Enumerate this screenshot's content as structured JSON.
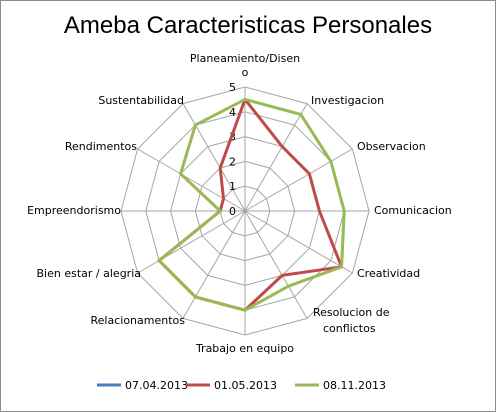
{
  "chart_data": {
    "type": "radar",
    "title": "Ameba Caracteristicas Personales",
    "categories": [
      "Planeamiento/Disen o",
      "Investigacion",
      "Observacion",
      "Comunicacion",
      "Creatividad",
      "Resolucion de conflictos",
      "Trabajo en equipo",
      "Relacionamentos",
      "Bien estar / alegria",
      "Empreendorismo",
      "Rendimentos",
      "Sustentabilidad"
    ],
    "rlim": [
      0,
      5
    ],
    "ticks": [
      "0",
      "1",
      "2",
      "3",
      "4",
      "5"
    ],
    "grid": true,
    "legend_position": "bottom",
    "series": [
      {
        "name": "07.04.2013",
        "color": "#4a7ebb",
        "values": [
          0,
          0,
          0,
          0,
          0,
          0,
          0,
          0,
          0,
          0,
          0,
          0
        ]
      },
      {
        "name": "01.05.2013",
        "color": "#be4b48",
        "values": [
          4.5,
          3,
          3,
          3,
          4.5,
          3,
          4,
          4,
          4,
          1,
          1,
          2
        ]
      },
      {
        "name": "08.11.2013",
        "color": "#98b954",
        "values": [
          4.5,
          4.5,
          4,
          4,
          4.5,
          3.5,
          4,
          4,
          4,
          1,
          3,
          4
        ]
      }
    ]
  }
}
